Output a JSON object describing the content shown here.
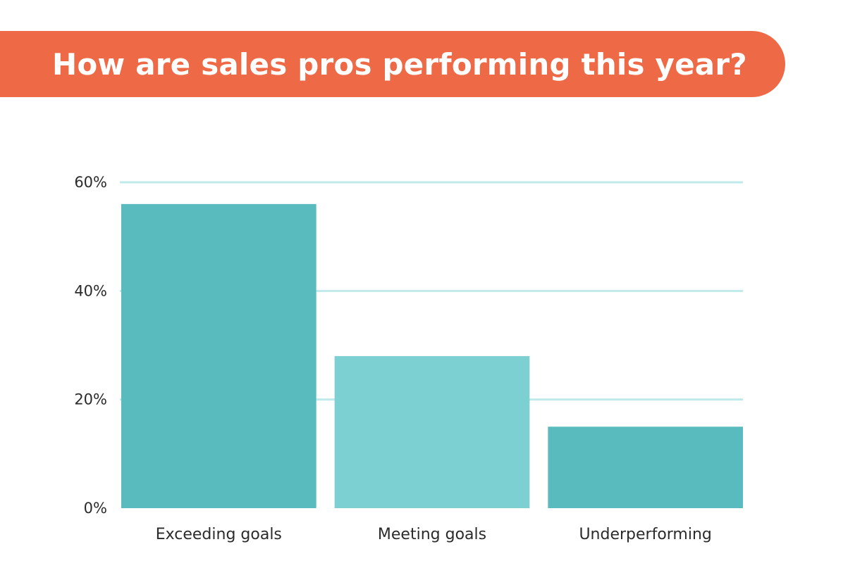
{
  "header": {
    "title": "How are sales pros performing this year?"
  },
  "colors": {
    "banner": "#ee6a47",
    "gridline": "#bfe9ea",
    "bar_dark": "#5abbbe",
    "bar_light": "#7dd0d2"
  },
  "chart_data": {
    "type": "bar",
    "title": "How are sales pros performing this year?",
    "categories": [
      "Exceeding goals",
      "Meeting goals",
      "Underperforming"
    ],
    "values": [
      56,
      28,
      15
    ],
    "bar_colors": [
      "#5abbbe",
      "#7dd0d2",
      "#5abbbe"
    ],
    "ylim": [
      0,
      60
    ],
    "yticks": [
      0,
      20,
      40,
      60
    ],
    "ytick_labels": [
      "0%",
      "20%",
      "40%",
      "60%"
    ],
    "xlabel": "",
    "ylabel": "",
    "grid": true,
    "legend": "none"
  }
}
